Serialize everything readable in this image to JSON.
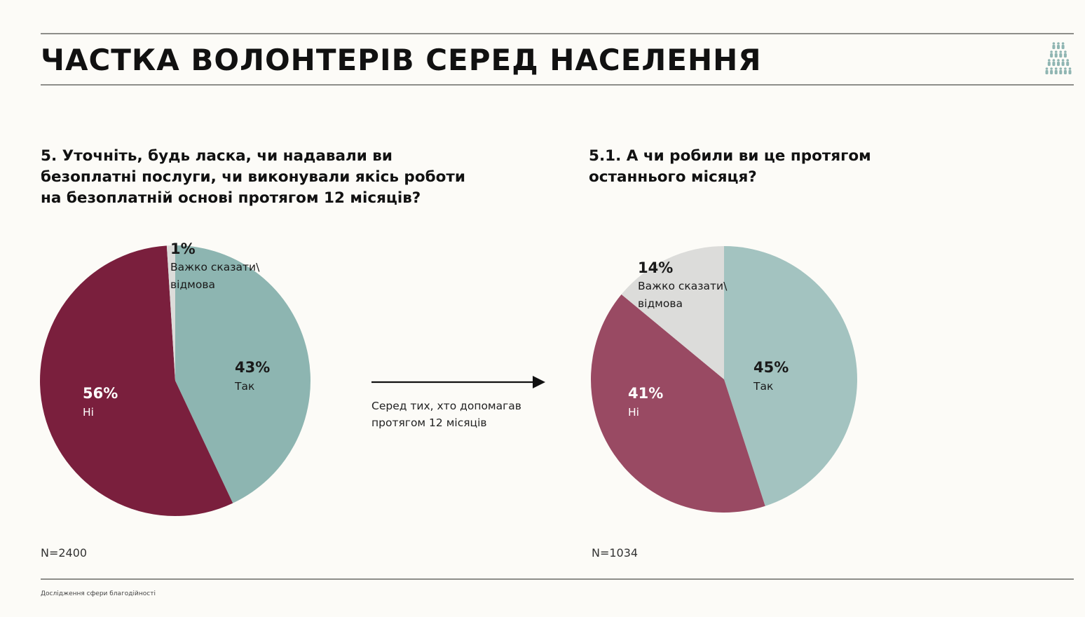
{
  "header": {
    "title": "ЧАСТКА ВОЛОНТЕРІВ СЕРЕД НАСЕЛЕННЯ"
  },
  "logo": {
    "icon": "people-group-icon",
    "color": "#8fb5b2"
  },
  "arrow": {
    "note": "Серед тих, хто допомагав протягом 12 місяців"
  },
  "footer": {
    "text": "Дослідження сфери благодійності"
  },
  "chart_data": [
    {
      "type": "pie",
      "title": "5. Уточніть, будь ласка, чи надавали ви безоплатні послуги, чи виконували якісь роботи на безоплатній основі протягом 12 місяців?",
      "n_label": "N=2400",
      "slices": [
        {
          "label": "Так",
          "pct_label": "43%",
          "value": 43,
          "color": "#8db5b1",
          "text_color": "#1a1a1a"
        },
        {
          "label": "Ні",
          "pct_label": "56%",
          "value": 56,
          "color": "#7a1f3d",
          "text_color": "#ffffff"
        },
        {
          "label": "Важко сказати\\ відмова",
          "pct_label": "1%",
          "value": 1,
          "color": "#dcdcda",
          "text_color": "#1a1a1a"
        }
      ]
    },
    {
      "type": "pie",
      "title": "5.1. А чи робили ви це протягом останнього місяця?",
      "n_label": "N=1034",
      "slices": [
        {
          "label": "Так",
          "pct_label": "45%",
          "value": 45,
          "color": "#a3c3c0",
          "text_color": "#1a1a1a"
        },
        {
          "label": "Ні",
          "pct_label": "41%",
          "value": 41,
          "color": "#994a63",
          "text_color": "#ffffff"
        },
        {
          "label": "Важко сказати\\ відмова",
          "pct_label": "14%",
          "value": 14,
          "color": "#dcdcda",
          "text_color": "#1a1a1a"
        }
      ]
    }
  ]
}
